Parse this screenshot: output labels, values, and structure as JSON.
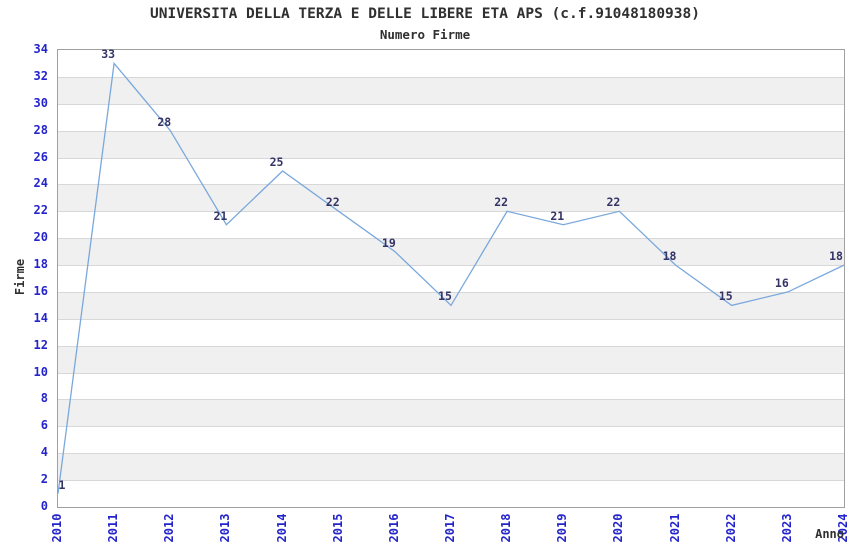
{
  "chart_data": {
    "type": "line",
    "title": "UNIVERSITA DELLA TERZA E DELLE LIBERE ETA APS (c.f.91048180938)",
    "subtitle": "Numero Firme",
    "xlabel": "Anno",
    "ylabel": "Firme",
    "categories": [
      "2010",
      "2011",
      "2012",
      "2013",
      "2014",
      "2015",
      "2016",
      "2017",
      "2018",
      "2019",
      "2020",
      "2021",
      "2022",
      "2023",
      "2024"
    ],
    "values": [
      1,
      33,
      28,
      21,
      25,
      22,
      19,
      15,
      22,
      21,
      22,
      18,
      15,
      16,
      18
    ],
    "point_labels": [
      "1",
      "33",
      "28",
      "21",
      "25",
      "22",
      "19",
      "15",
      "22",
      "21",
      "22",
      "18",
      "15",
      "16",
      "18"
    ],
    "ylim": [
      0,
      34
    ],
    "ytick_step": 2,
    "grid": true,
    "alternating_bands": true,
    "legend": "none",
    "colors": {
      "line": "#7aa8dc",
      "tick_text": "#2424cc",
      "point_label_text": "#333366",
      "heading_text": "#303030",
      "band": "#f0f0f0",
      "gridline": "#d8d8d8",
      "border": "#a0a0a0",
      "background": "#ffffff"
    }
  }
}
